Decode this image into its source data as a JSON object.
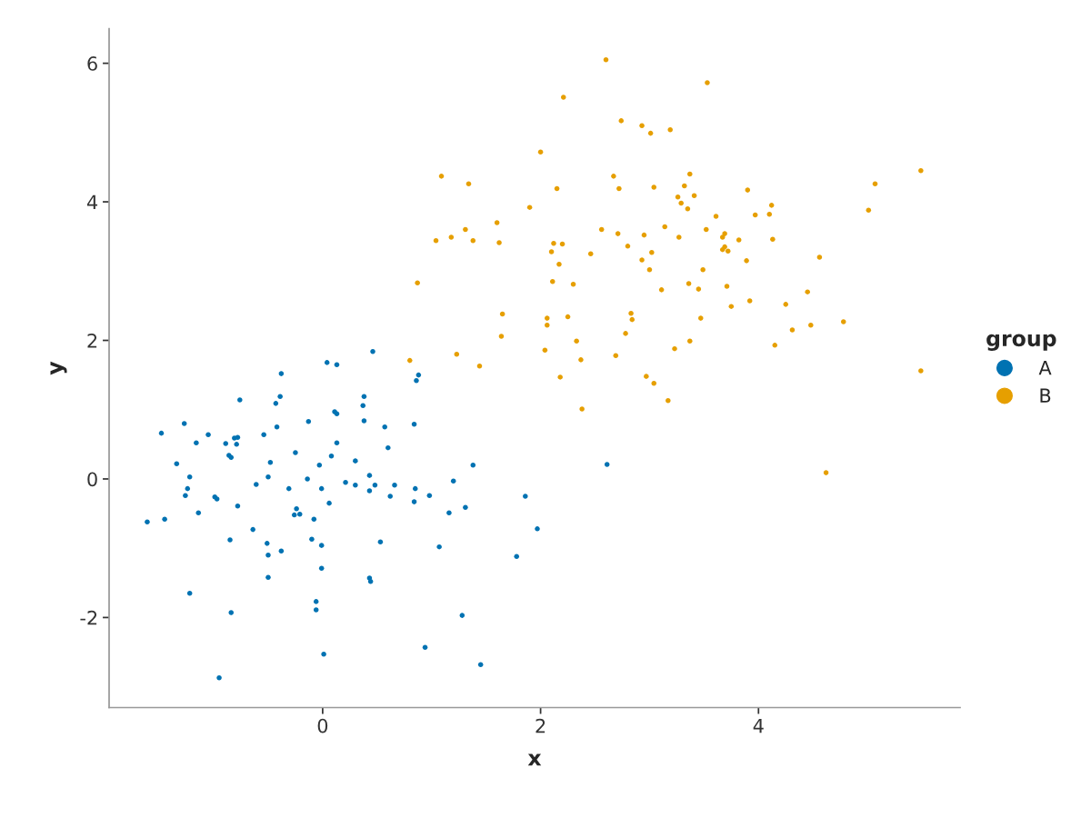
{
  "chart_data": {
    "type": "scatter",
    "xlabel": "x",
    "ylabel": "y",
    "legend_title": "group",
    "legend": "right",
    "marker": "circle",
    "grid": false,
    "xlim": [
      -1.96,
      5.85
    ],
    "ylim": [
      -3.3,
      6.5
    ],
    "xticks": [
      0,
      2,
      4
    ],
    "yticks": [
      -2,
      0,
      2,
      4,
      6
    ],
    "series": [
      {
        "name": "A",
        "color": "#0072b2",
        "x": [
          -1.61,
          -1.48,
          -1.45,
          -1.34,
          -1.27,
          -1.26,
          -1.24,
          -1.22,
          -1.22,
          -1.16,
          -1.14,
          -1.05,
          -0.99,
          -0.97,
          -0.95,
          -0.89,
          -0.86,
          -0.85,
          -0.84,
          -0.84,
          -0.81,
          -0.79,
          -0.78,
          -0.78,
          -0.76,
          -0.64,
          -0.61,
          -0.54,
          -0.51,
          -0.5,
          -0.5,
          -0.5,
          -0.48,
          -0.43,
          -0.42,
          -0.39,
          -0.38,
          -0.38,
          -0.31,
          -0.26,
          -0.25,
          -0.24,
          -0.21,
          -0.14,
          -0.13,
          -0.1,
          -0.08,
          -0.06,
          -0.06,
          -0.03,
          -0.01,
          -0.01,
          -0.01,
          0.01,
          0.04,
          0.06,
          0.08,
          0.11,
          0.13,
          0.13,
          0.13,
          0.21,
          0.3,
          0.3,
          0.37,
          0.38,
          0.38,
          0.43,
          0.43,
          0.43,
          0.44,
          0.46,
          0.48,
          0.53,
          0.57,
          0.6,
          0.62,
          0.66,
          0.84,
          0.84,
          0.85,
          0.86,
          0.88,
          0.94,
          0.98,
          1.07,
          1.16,
          1.2,
          1.31,
          1.28,
          1.38,
          1.45,
          1.78,
          1.86,
          1.97,
          2.61
        ],
        "values": [
          -0.62,
          0.66,
          -0.58,
          0.22,
          0.8,
          -0.24,
          -0.14,
          0.03,
          -1.65,
          0.52,
          -0.49,
          0.64,
          -0.26,
          -0.29,
          -2.87,
          0.51,
          0.34,
          -0.88,
          0.31,
          -1.93,
          0.59,
          0.5,
          -0.39,
          0.6,
          1.14,
          -0.73,
          -0.08,
          0.64,
          -0.93,
          -1.1,
          -1.42,
          0.03,
          0.24,
          1.09,
          0.75,
          1.19,
          1.52,
          -1.04,
          -0.14,
          -0.52,
          0.38,
          -0.43,
          -0.51,
          0.0,
          0.83,
          -0.87,
          -0.58,
          -1.77,
          -1.89,
          0.2,
          -0.96,
          -1.29,
          -0.14,
          -2.53,
          1.68,
          -0.35,
          0.33,
          0.97,
          1.65,
          0.52,
          0.94,
          -0.05,
          -0.09,
          0.26,
          1.06,
          1.19,
          0.84,
          0.05,
          -0.17,
          -1.43,
          -1.48,
          1.84,
          -0.09,
          -0.91,
          0.75,
          0.45,
          -0.25,
          -0.09,
          -0.33,
          0.79,
          -0.14,
          1.42,
          1.5,
          -2.43,
          -0.24,
          -0.98,
          -0.49,
          -0.03,
          -0.41,
          -1.97,
          0.2,
          -2.68,
          -1.12,
          -0.25,
          -0.72,
          0.21
        ]
      },
      {
        "name": "B",
        "color": "#e69f00",
        "x": [
          0.8,
          0.87,
          1.04,
          1.09,
          1.18,
          1.23,
          1.31,
          1.34,
          1.38,
          1.44,
          1.6,
          1.62,
          1.64,
          1.65,
          1.9,
          2.0,
          2.04,
          2.06,
          2.06,
          2.1,
          2.11,
          2.12,
          2.15,
          2.17,
          2.18,
          2.2,
          2.21,
          2.25,
          2.3,
          2.33,
          2.37,
          2.38,
          2.46,
          2.56,
          2.6,
          2.67,
          2.69,
          2.71,
          2.72,
          2.74,
          2.78,
          2.8,
          2.83,
          2.84,
          2.93,
          2.95,
          2.93,
          2.97,
          3.0,
          3.01,
          3.02,
          3.04,
          3.04,
          3.11,
          3.14,
          3.17,
          3.19,
          3.23,
          3.26,
          3.27,
          3.29,
          3.32,
          3.35,
          3.37,
          3.36,
          3.37,
          3.41,
          3.45,
          3.47,
          3.49,
          3.52,
          3.53,
          3.61,
          3.67,
          3.67,
          3.69,
          3.69,
          3.71,
          3.72,
          3.75,
          3.82,
          3.89,
          3.9,
          3.92,
          3.97,
          4.1,
          4.12,
          4.13,
          4.15,
          4.25,
          4.31,
          4.45,
          4.48,
          4.56,
          4.62,
          4.78,
          5.01,
          5.07,
          5.49,
          5.49
        ],
        "values": [
          1.71,
          2.83,
          3.44,
          4.37,
          3.49,
          1.8,
          3.6,
          4.26,
          3.44,
          1.63,
          3.7,
          3.41,
          2.06,
          2.38,
          3.92,
          4.72,
          1.86,
          2.32,
          2.22,
          3.28,
          2.85,
          3.4,
          4.19,
          3.1,
          1.47,
          3.39,
          5.51,
          2.34,
          2.81,
          1.99,
          1.72,
          1.01,
          3.25,
          3.6,
          6.05,
          4.37,
          1.78,
          3.54,
          4.19,
          5.17,
          2.1,
          3.36,
          2.39,
          2.3,
          5.1,
          3.52,
          3.16,
          1.48,
          3.02,
          4.99,
          3.27,
          1.38,
          4.21,
          2.73,
          3.64,
          1.13,
          5.04,
          1.88,
          4.07,
          3.49,
          3.98,
          4.23,
          3.9,
          4.4,
          2.82,
          1.99,
          4.09,
          2.74,
          2.32,
          3.02,
          3.6,
          5.72,
          3.79,
          3.31,
          3.49,
          3.35,
          3.54,
          2.78,
          3.29,
          2.49,
          3.45,
          3.15,
          4.17,
          2.57,
          3.81,
          3.82,
          3.95,
          3.46,
          1.93,
          2.52,
          2.15,
          2.7,
          2.22,
          3.2,
          0.09,
          2.27,
          3.88,
          4.26,
          4.45,
          1.56
        ]
      }
    ]
  }
}
